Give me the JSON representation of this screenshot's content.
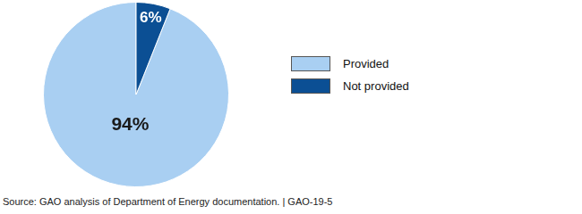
{
  "chart_data": {
    "type": "pie",
    "categories": [
      "Provided",
      "Not provided"
    ],
    "values": [
      94,
      6
    ],
    "value_labels": [
      "94%",
      "6%"
    ],
    "colors": [
      "#a9cff2",
      "#0b4f94"
    ],
    "data_labels": true,
    "legend": "right",
    "source": "Source: GAO analysis of Department of Energy documentation.  |  GAO-19-5"
  }
}
